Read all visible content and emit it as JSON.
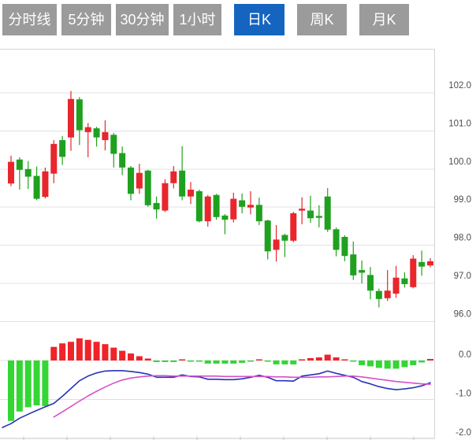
{
  "tabs": [
    {
      "label": "分时线",
      "active": false
    },
    {
      "label": "5分钟",
      "active": false
    },
    {
      "label": "30分钟",
      "active": false
    },
    {
      "label": "1小时",
      "active": false
    },
    {
      "label": "日K",
      "active": true
    },
    {
      "label": "周K",
      "active": false
    },
    {
      "label": "月K",
      "active": false
    }
  ],
  "colors": {
    "tab_bg": "#9b9b9b",
    "tab_active_bg": "#1565c0",
    "tab_text": "#ffffff",
    "candle_up_red": "#e8262c",
    "candle_down_green": "#1fa11f",
    "hist_pos_red": "#ef2329",
    "hist_neg_green": "#33d633",
    "dif_line_blue": "#2634b4",
    "dea_line_magenta": "#d94fc9",
    "grid": "#e0e0e0",
    "border": "#d4d4d4",
    "axis_line": "#c4c4c4",
    "axis_text": "#4d4d4d"
  },
  "chart_data": {
    "type": "candlestick",
    "interval_selected": "日K",
    "panels": [
      {
        "name": "price",
        "yticks": [
          "102.0",
          "101.0",
          "100.0",
          "99.0",
          "98.0",
          "97.0",
          "96.0"
        ],
        "ylim": [
          95.8,
          103.1
        ],
        "grid": true,
        "ohlc_format": "[open, high, low, close]",
        "candles": [
          [
            99.62,
            100.35,
            99.55,
            100.19
          ],
          [
            100.25,
            100.31,
            99.46,
            99.98
          ],
          [
            100.0,
            100.21,
            99.48,
            99.8
          ],
          [
            99.82,
            100.07,
            99.18,
            99.22
          ],
          [
            99.27,
            100.04,
            99.23,
            99.94
          ],
          [
            99.88,
            100.76,
            99.63,
            100.66
          ],
          [
            100.76,
            100.87,
            100.11,
            100.32
          ],
          [
            100.83,
            102.05,
            100.48,
            101.84
          ],
          [
            101.83,
            101.89,
            100.63,
            101.02
          ],
          [
            100.97,
            101.21,
            100.31,
            101.1
          ],
          [
            101.07,
            101.11,
            100.59,
            100.83
          ],
          [
            100.76,
            101.28,
            100.49,
            100.97
          ],
          [
            100.9,
            100.95,
            100.04,
            100.4
          ],
          [
            100.42,
            100.59,
            99.84,
            100.04
          ],
          [
            100.04,
            100.08,
            99.18,
            99.35
          ],
          [
            99.49,
            100.14,
            99.35,
            99.9
          ],
          [
            99.96,
            99.98,
            99.01,
            99.05
          ],
          [
            99.11,
            99.28,
            98.7,
            98.94
          ],
          [
            98.91,
            99.73,
            98.87,
            99.63
          ],
          [
            99.63,
            100.08,
            99.49,
            99.94
          ],
          [
            99.96,
            100.6,
            99.18,
            99.28
          ],
          [
            99.28,
            99.66,
            99.08,
            99.46
          ],
          [
            99.42,
            99.46,
            98.6,
            98.63
          ],
          [
            98.63,
            99.32,
            98.49,
            99.28
          ],
          [
            99.32,
            99.35,
            98.67,
            98.74
          ],
          [
            98.78,
            98.82,
            98.29,
            98.67
          ],
          [
            98.68,
            99.38,
            98.6,
            99.22
          ],
          [
            99.18,
            99.36,
            98.84,
            99.01
          ],
          [
            98.99,
            99.42,
            98.81,
            99.06
          ],
          [
            99.06,
            99.25,
            98.53,
            98.63
          ],
          [
            98.65,
            98.67,
            97.63,
            97.84
          ],
          [
            97.88,
            98.53,
            97.57,
            98.15
          ],
          [
            98.27,
            98.3,
            97.69,
            98.12
          ],
          [
            98.12,
            98.88,
            98.08,
            98.84
          ],
          [
            98.91,
            99.26,
            98.55,
            98.96
          ],
          [
            98.91,
            99.3,
            98.59,
            98.71
          ],
          [
            98.77,
            99.05,
            98.47,
            98.72
          ],
          [
            99.28,
            99.5,
            98.35,
            98.41
          ],
          [
            98.42,
            98.47,
            97.71,
            97.88
          ],
          [
            98.22,
            98.26,
            97.58,
            97.72
          ],
          [
            97.76,
            98.1,
            97.09,
            97.21
          ],
          [
            97.35,
            97.6,
            97.0,
            97.28
          ],
          [
            97.22,
            97.43,
            96.58,
            96.81
          ],
          [
            96.8,
            96.86,
            96.37,
            96.59
          ],
          [
            96.61,
            97.35,
            96.54,
            96.81
          ],
          [
            96.73,
            97.46,
            96.62,
            97.15
          ],
          [
            97.13,
            97.29,
            96.89,
            96.98
          ],
          [
            96.9,
            97.74,
            96.87,
            97.65
          ],
          [
            97.56,
            97.86,
            97.2,
            97.44
          ],
          [
            97.47,
            97.66,
            97.42,
            97.58
          ]
        ]
      },
      {
        "name": "macd",
        "yticks": [
          "0.0",
          "-1.0",
          "-2.0"
        ],
        "ylim": [
          -2.0,
          0.6
        ],
        "histogram": [
          -1.55,
          -1.31,
          -1.2,
          -1.15,
          -1.17,
          0.35,
          0.44,
          0.48,
          0.57,
          0.53,
          0.48,
          0.42,
          0.33,
          0.25,
          0.18,
          0.11,
          0.05,
          -0.04,
          -0.04,
          -0.04,
          0.03,
          -0.01,
          -0.02,
          -0.08,
          -0.08,
          -0.08,
          -0.08,
          -0.06,
          -0.02,
          0.03,
          -0.02,
          -0.1,
          -0.1,
          -0.1,
          0.03,
          0.06,
          0.08,
          0.15,
          0.08,
          0.02,
          -0.03,
          -0.12,
          -0.15,
          -0.19,
          -0.21,
          -0.21,
          -0.17,
          -0.12,
          -0.05,
          0.04
        ],
        "series": [
          {
            "name": "DIF",
            "pre": -1.72,
            "values": [
              -1.62,
              -1.48,
              -1.38,
              -1.28,
              -1.19,
              -1.1,
              -0.92,
              -0.72,
              -0.52,
              -0.4,
              -0.32,
              -0.27,
              -0.26,
              -0.26,
              -0.28,
              -0.31,
              -0.35,
              -0.43,
              -0.43,
              -0.43,
              -0.37,
              -0.41,
              -0.42,
              -0.48,
              -0.48,
              -0.49,
              -0.49,
              -0.47,
              -0.43,
              -0.38,
              -0.43,
              -0.52,
              -0.52,
              -0.53,
              -0.4,
              -0.37,
              -0.34,
              -0.27,
              -0.33,
              -0.38,
              -0.43,
              -0.54,
              -0.6,
              -0.67,
              -0.72,
              -0.75,
              -0.73,
              -0.7,
              -0.65,
              -0.57
            ]
          },
          {
            "name": "DEA",
            "pre": null,
            "values": [
              null,
              null,
              null,
              null,
              null,
              -1.45,
              -1.32,
              -1.18,
              -1.04,
              -0.91,
              -0.79,
              -0.68,
              -0.58,
              -0.5,
              -0.45,
              -0.42,
              -0.4,
              -0.39,
              -0.39,
              -0.4,
              -0.4,
              -0.4,
              -0.4,
              -0.4,
              -0.4,
              -0.41,
              -0.41,
              -0.41,
              -0.41,
              -0.41,
              -0.41,
              -0.42,
              -0.42,
              -0.43,
              -0.43,
              -0.43,
              -0.42,
              -0.42,
              -0.41,
              -0.4,
              -0.4,
              -0.42,
              -0.45,
              -0.48,
              -0.51,
              -0.54,
              -0.56,
              -0.58,
              -0.6,
              -0.61
            ]
          }
        ]
      }
    ],
    "x_axis": {
      "tick_count": 10,
      "labels_visible": false
    }
  }
}
